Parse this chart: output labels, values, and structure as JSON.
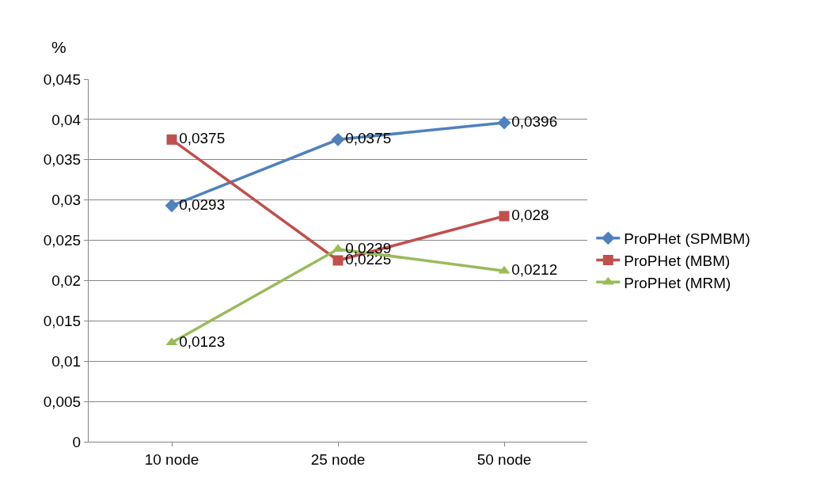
{
  "chart_data": {
    "type": "line",
    "ylabel": "%",
    "categories": [
      "10 node",
      "25 node",
      "50 node"
    ],
    "series": [
      {
        "name": "ProPHet (SPMBM)",
        "color": "#4f81bd",
        "marker": "diamond",
        "values": [
          0.0293,
          0.0375,
          0.0396
        ],
        "value_labels": [
          "0,0293",
          "0,0375",
          "0,0396"
        ]
      },
      {
        "name": "ProPHet (MBM)",
        "color": "#c0504d",
        "marker": "square",
        "values": [
          0.0375,
          0.0225,
          0.028
        ],
        "value_labels": [
          "0,0375",
          "0,0225",
          "0,028"
        ]
      },
      {
        "name": "ProPHet (MRM)",
        "color": "#9bbb59",
        "marker": "triangle",
        "values": [
          0.0123,
          0.0239,
          0.0212
        ],
        "value_labels": [
          "0,0123",
          "0,0239",
          "0,0212"
        ]
      }
    ],
    "ylim": [
      0,
      0.045
    ],
    "yticks": [
      0,
      {
        "value": 0.005,
        "label": "0,005"
      },
      {
        "value": 0.01,
        "label": "0,01"
      },
      {
        "value": 0.015,
        "label": "0,015"
      },
      {
        "value": 0.02,
        "label": "0,02"
      },
      {
        "value": 0.025,
        "label": "0,025"
      },
      {
        "value": 0.03,
        "label": "0,03"
      },
      {
        "value": 0.035,
        "label": "0,035"
      },
      {
        "value": 0.04,
        "label": "0,04"
      },
      {
        "value": 0.045,
        "label": "0,045"
      }
    ],
    "grid": "y",
    "legend": "right",
    "line_style": "solid"
  }
}
